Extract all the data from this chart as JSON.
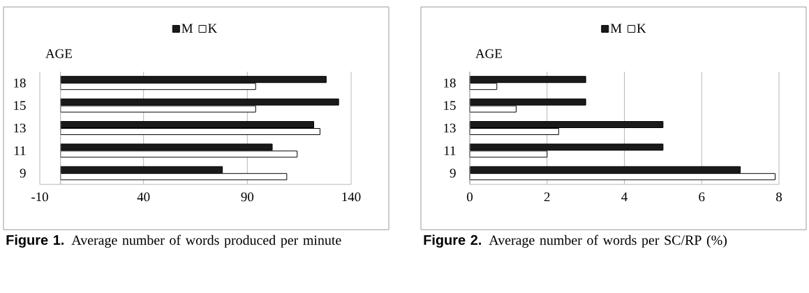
{
  "chart_data": [
    {
      "type": "bar",
      "orientation": "horizontal",
      "title": "**Figure 1.** Average number of words produced per minute",
      "ylabel": "AGE",
      "categories": [
        "18",
        "15",
        "13",
        "11",
        "9"
      ],
      "series": [
        {
          "name": "M",
          "color": "#1a1a1a",
          "values": [
            128,
            134,
            122,
            102,
            78
          ]
        },
        {
          "name": "K",
          "color": "#ffffff",
          "values": [
            94,
            94,
            125,
            114,
            109
          ]
        }
      ],
      "xlim": [
        -10,
        140
      ],
      "xticks": [
        -10,
        40,
        90,
        140
      ],
      "grid": "x",
      "legend": "top"
    },
    {
      "type": "bar",
      "orientation": "horizontal",
      "title": "**Figure 2.** Average number of words per SC/RP (%)",
      "ylabel": "AGE",
      "categories": [
        "18",
        "15",
        "13",
        "11",
        "9"
      ],
      "series": [
        {
          "name": "M",
          "color": "#1a1a1a",
          "values": [
            3,
            3,
            5,
            5,
            7
          ]
        },
        {
          "name": "K",
          "color": "#ffffff",
          "values": [
            0.7,
            1.2,
            2.3,
            2,
            7.9
          ]
        }
      ],
      "xlim": [
        0,
        8
      ],
      "xticks": [
        0,
        2,
        4,
        6,
        8
      ],
      "grid": "x",
      "legend": "top"
    }
  ]
}
